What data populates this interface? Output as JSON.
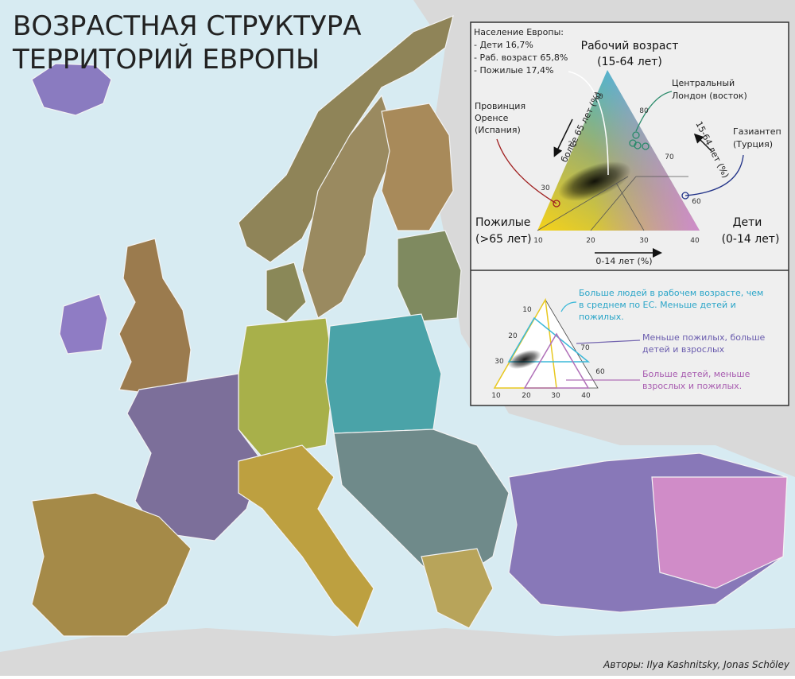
{
  "title": [
    "ВОЗРАСТНАЯ СТРУКТУРА",
    "ТЕРРИТОРИЙ ЕВРОПЫ"
  ],
  "legend_main": {
    "population": {
      "heading": "Население Европы:",
      "items": [
        "- Дети 16,7%",
        "- Раб. возраст 65,8%",
        "- Пожилые 17,4%"
      ]
    },
    "corners": {
      "top": [
        "Рабочий возраст",
        "(15-64 лет)"
      ],
      "left": [
        "Пожилые",
        "(>65 лет)"
      ],
      "right": [
        "Дети",
        "(0-14 лет)"
      ]
    },
    "axes": {
      "bottom": "0-14 лет (%)",
      "left": "более 65 лет (%)",
      "right": "15-64 лет (%)"
    },
    "ticks": {
      "bottom": [
        "10",
        "20",
        "30",
        "40"
      ],
      "left": [
        "10",
        "20",
        "30"
      ],
      "right": [
        "80",
        "70",
        "60"
      ]
    },
    "annotations": {
      "orense": [
        "Провинция",
        "Оренсе",
        "(Испания)"
      ],
      "london": [
        "Центральный",
        "Лондон (восток)"
      ],
      "gaziantep": [
        "Газиантеп",
        "(Турция)"
      ]
    }
  },
  "legend_key": {
    "ticks": {
      "left": [
        "10",
        "20",
        "30"
      ],
      "bottom": [
        "10",
        "20",
        "30",
        "40"
      ],
      "right": [
        "70",
        "60"
      ]
    },
    "notes": {
      "working": [
        "Больше людей в рабочем возрасте, чем",
        "в среднем по ЕС. Меньше детей и",
        "пожилых."
      ],
      "children_adults": [
        "Меньше пожилых, больше",
        "детей и взрослых"
      ],
      "children": [
        "Больше детей, меньше",
        "взрослых и пожилых."
      ]
    }
  },
  "credit": "Авторы: Ilya Kashnitsky, Jonas Schöley"
}
